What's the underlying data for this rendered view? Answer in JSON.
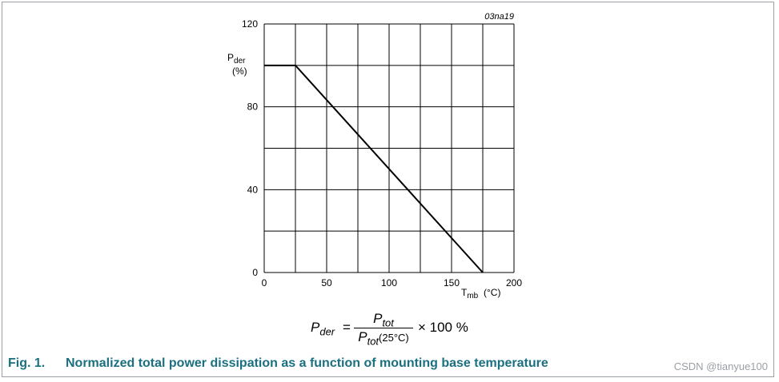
{
  "chart_data": {
    "type": "line",
    "code": "03na19",
    "ylabel": "P",
    "ylabel_sub": "der",
    "ylabel_unit": "(%)",
    "xlabel": "T",
    "xlabel_sub": "mb",
    "xlabel_unit": "(°C)",
    "xlim": [
      0,
      200
    ],
    "ylim": [
      0,
      120
    ],
    "x_ticks": [
      0,
      50,
      100,
      150,
      200
    ],
    "y_ticks": [
      0,
      40,
      80,
      120
    ],
    "x_grid_step": 25,
    "y_grid_step": 20,
    "grid": true,
    "series": [
      {
        "x": [
          0,
          25,
          175
        ],
        "y": [
          100,
          100,
          0
        ]
      }
    ]
  },
  "formula": {
    "lhs": "P",
    "lhs_sub": "der",
    "equals": "=",
    "numerator": "P",
    "numerator_sub": "tot",
    "denominator": "P",
    "denominator_sub": "tot",
    "denominator_paren": "(25°C)",
    "rhs": "× 100 %"
  },
  "caption": {
    "number": "Fig. 1.",
    "text": "Normalized total power dissipation as a function of mounting base temperature"
  },
  "watermark": "CSDN @tianyue100",
  "colors": {
    "caption": "#1a7080",
    "frame": "#9aa0a6"
  }
}
